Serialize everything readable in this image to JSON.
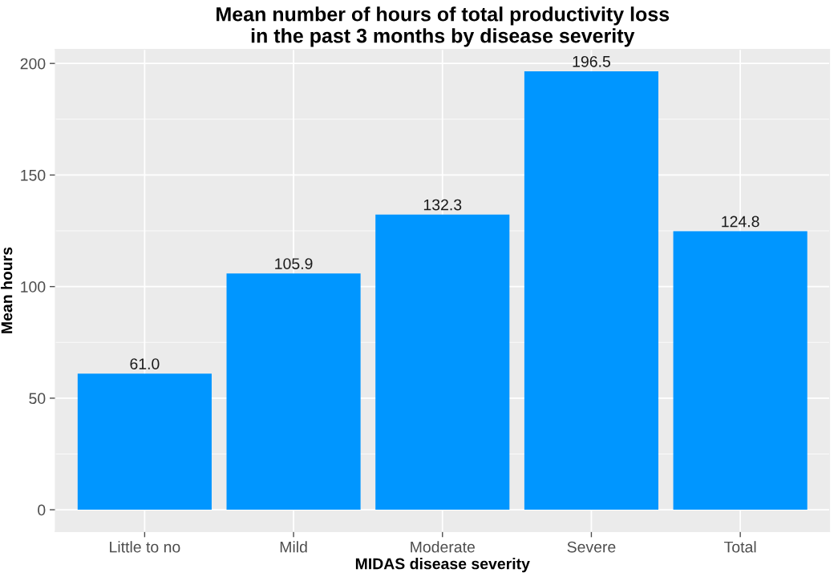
{
  "chart_data": {
    "type": "bar",
    "title": "Mean number of hours of total productivity loss\nin the past 3 months by disease severity",
    "xlabel": "MIDAS disease severity",
    "ylabel": "Mean hours",
    "categories": [
      "Little to no",
      "Mild",
      "Moderate",
      "Severe",
      "Total"
    ],
    "values": [
      61.0,
      105.9,
      132.3,
      196.5,
      124.8
    ],
    "color": "#0096ff",
    "ylim": [
      -9.8,
      206.3
    ],
    "yticks": [
      0,
      50,
      100,
      150,
      200
    ],
    "value_labels": [
      "61.0",
      "105.9",
      "132.3",
      "196.5",
      "124.8"
    ],
    "grid": true
  }
}
